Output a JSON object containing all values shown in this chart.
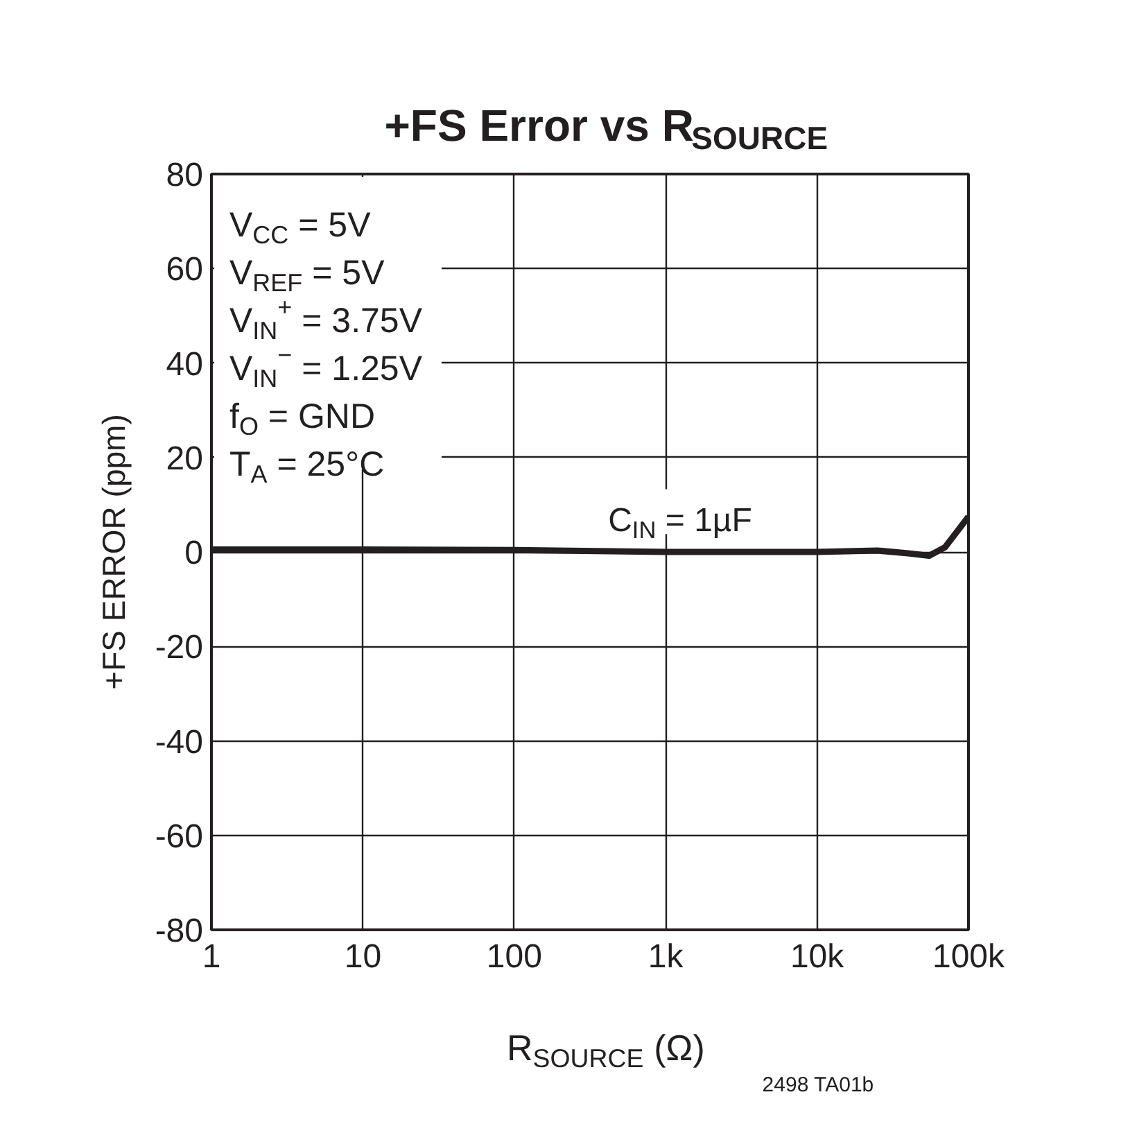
{
  "chart_data": {
    "type": "line",
    "title": "+FS Error vs R$_{SOURCE}$",
    "xlabel": "R$_{SOURCE}$ (Ω)",
    "ylabel": "+FS ERROR (ppm)",
    "annotations": [
      "V$_{CC}$ = 5V",
      "V$_{REF}$ = 5V",
      "V$_{IN}$$^{+}$ = 3.75V",
      "V$_{IN}$$^{−}$ = 1.25V",
      "f$_{O}$ = GND",
      "T$_{A}$ = 25°C",
      "2498 TA01b"
    ],
    "x": [
      1,
      10,
      100,
      1000,
      5000,
      10000,
      25000,
      40000,
      55000,
      70000,
      85000,
      100000
    ],
    "series": [
      {
        "name": "C$_{IN}$ = 1µF",
        "color": "#231f20",
        "values": [
          0.5,
          0.5,
          0.4,
          0,
          0,
          0,
          0.3,
          -0.3,
          -0.8,
          1,
          4.5,
          7.5
        ]
      }
    ],
    "log": "x",
    "xlim": [
      1,
      100000
    ],
    "ylim": [
      -80,
      80
    ],
    "xticks": [
      1,
      10,
      100,
      {
        "value": 1000,
        "label": "1k"
      },
      {
        "value": 10000,
        "label": "10k"
      },
      {
        "value": 100000,
        "label": "100k"
      }
    ],
    "yticks": [
      -80,
      -60,
      -40,
      -20,
      0,
      20,
      40,
      60,
      80
    ],
    "grid": true,
    "legend": false,
    "marker": "none",
    "line_style": "solid"
  }
}
